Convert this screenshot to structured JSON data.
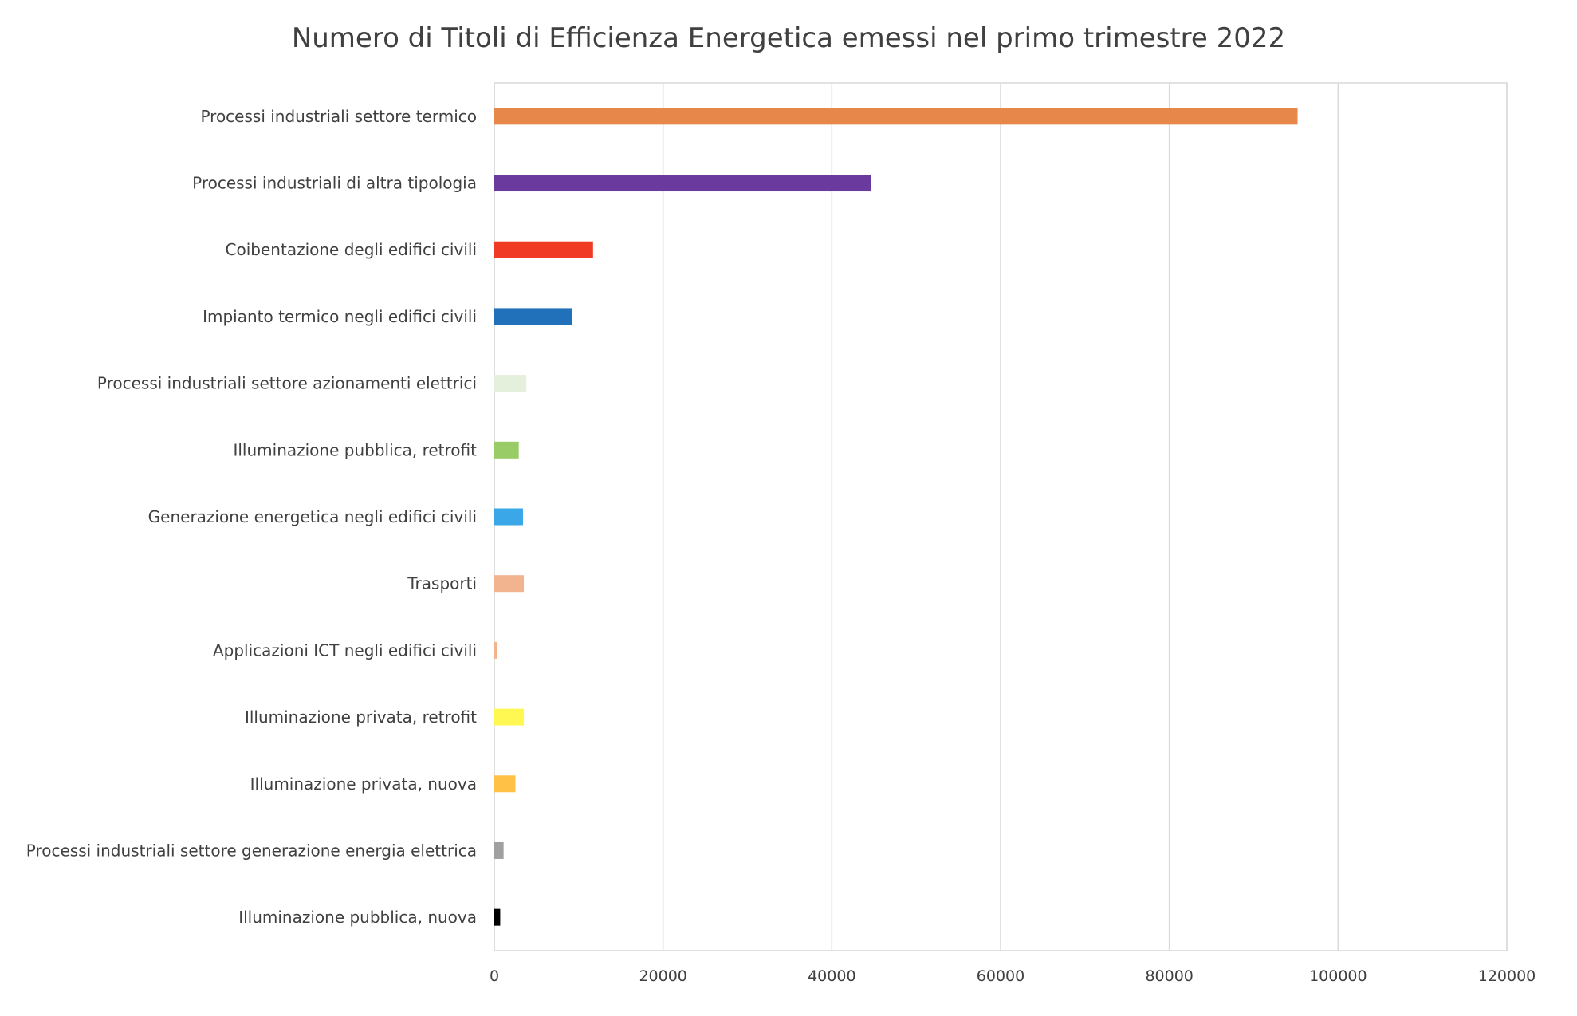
{
  "chart_data": {
    "type": "bar",
    "orientation": "horizontal",
    "title": "Numero di Titoli di Efficienza Energetica emessi nel primo trimestre 2022",
    "xlabel": "",
    "ylabel": "",
    "xlim": [
      0,
      120000
    ],
    "xticks": [
      0,
      20000,
      40000,
      60000,
      80000,
      100000,
      120000
    ],
    "grid": true,
    "legend": "none",
    "categories": [
      "Processi industriali settore termico",
      "Processi industriali di altra tipologia",
      "Coibentazione degli edifici civili",
      "Impianto termico negli edifici civili",
      "Processi industriali settore azionamenti elettrici",
      "Illuminazione pubblica, retrofit",
      "Generazione energetica negli edifici civili",
      "Trasporti",
      "Applicazioni ICT negli edifici civili",
      "Illuminazione privata, retrofit",
      "Illuminazione privata, nuova",
      "Processi industriali settore generazione energia elettrica",
      "Illuminazione pubblica, nuova"
    ],
    "values": [
      95200,
      44600,
      11700,
      9200,
      3800,
      2900,
      3400,
      3500,
      300,
      3500,
      2500,
      1100,
      700
    ],
    "colors": [
      "#E8874A",
      "#6B3A9E",
      "#F03A24",
      "#2070BA",
      "#E4EFDC",
      "#99CC66",
      "#3AA8E8",
      "#F2B48E",
      "#F2B48E",
      "#FFF752",
      "#FFC246",
      "#A0A0A0",
      "#000000"
    ]
  }
}
